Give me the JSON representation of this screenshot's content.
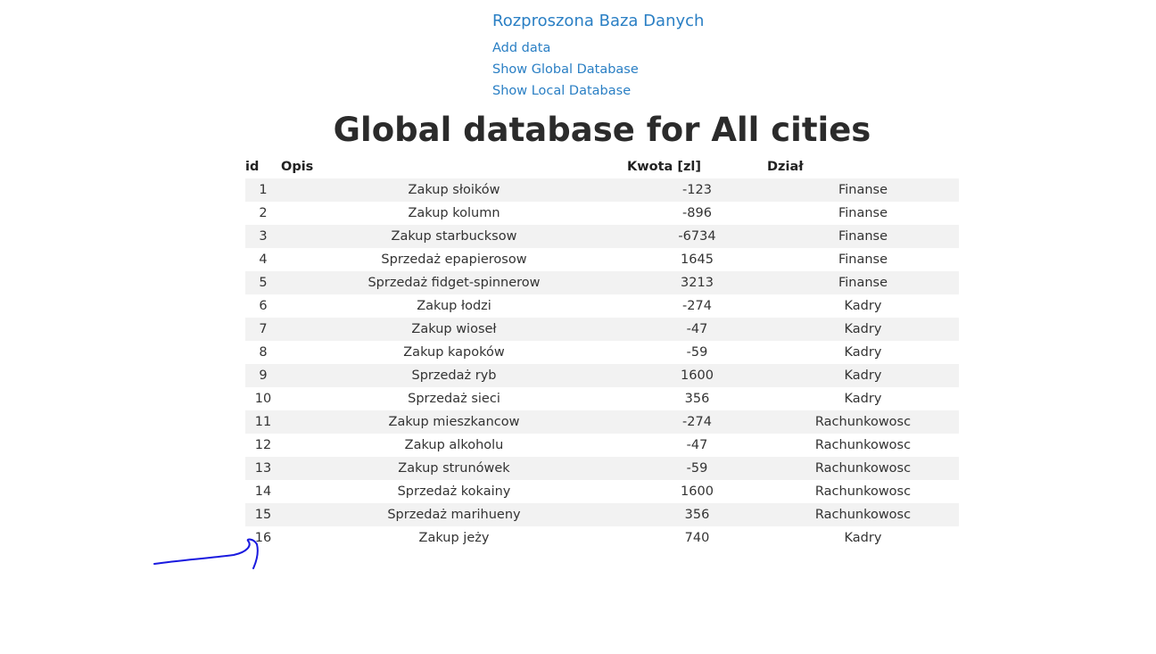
{
  "nav": {
    "brand": "Rozproszona Baza Danych",
    "links": [
      "Add data",
      "Show Global Database",
      "Show Local Database"
    ]
  },
  "heading": "Global database for All cities",
  "table": {
    "headers": [
      "id",
      "Opis",
      "Kwota [zl]",
      "Dział"
    ],
    "rows": [
      [
        "1",
        "Zakup słoików",
        "-123",
        "Finanse"
      ],
      [
        "2",
        "Zakup kolumn",
        "-896",
        "Finanse"
      ],
      [
        "3",
        "Zakup starbucksow",
        "-6734",
        "Finanse"
      ],
      [
        "4",
        "Sprzedaż epapierosow",
        "1645",
        "Finanse"
      ],
      [
        "5",
        "Sprzedaż fidget-spinnerow",
        "3213",
        "Finanse"
      ],
      [
        "6",
        "Zakup łodzi",
        "-274",
        "Kadry"
      ],
      [
        "7",
        "Zakup wioseł",
        "-47",
        "Kadry"
      ],
      [
        "8",
        "Zakup kapoków",
        "-59",
        "Kadry"
      ],
      [
        "9",
        "Sprzedaż ryb",
        "1600",
        "Kadry"
      ],
      [
        "10",
        "Sprzedaż sieci",
        "356",
        "Kadry"
      ],
      [
        "11",
        "Zakup mieszkancow",
        "-274",
        "Rachunkowosc"
      ],
      [
        "12",
        "Zakup alkoholu",
        "-47",
        "Rachunkowosc"
      ],
      [
        "13",
        "Zakup strunówek",
        "-59",
        "Rachunkowosc"
      ],
      [
        "14",
        "Sprzedaż kokainy",
        "1600",
        "Rachunkowosc"
      ],
      [
        "15",
        "Sprzedaż marihueny",
        "356",
        "Rachunkowosc"
      ],
      [
        "16",
        "Zakup jeży",
        "740",
        "Kadry"
      ]
    ]
  },
  "annotation": {
    "color": "#1a1adf"
  }
}
